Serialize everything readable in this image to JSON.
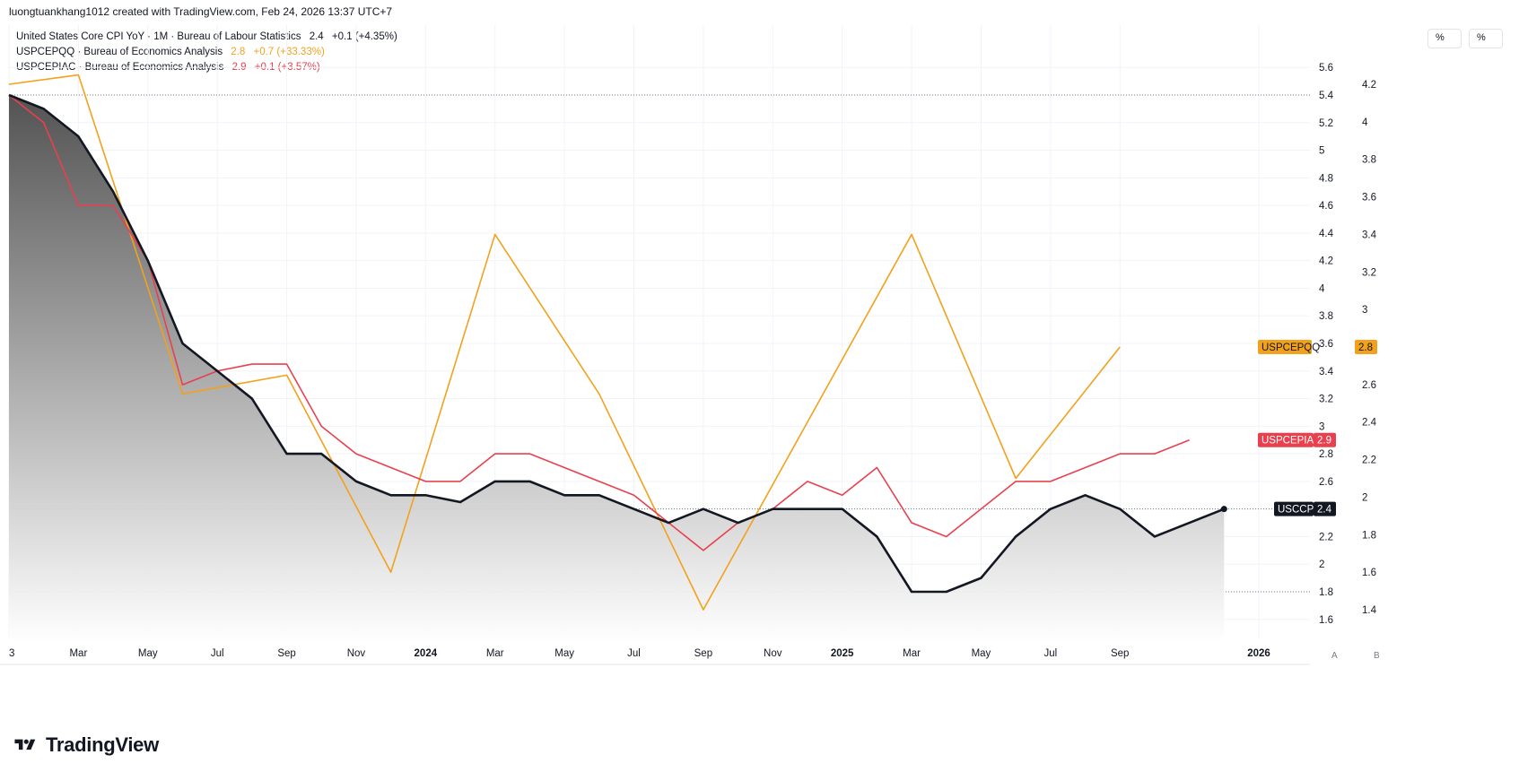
{
  "header": {
    "watermark": "luongtuankhang1012 created with TradingView.com, Feb 24, 2026 13:37 UTC+7"
  },
  "legend": [
    {
      "name": "United States Core CPI YoY · 1M · Bureau of Labour Statistics",
      "value": "2.4",
      "change": "+0.1 (+4.35%)",
      "color": "#131722"
    },
    {
      "name": "USPCEPQQ · Bureau of Economics Analysis",
      "value": "2.8",
      "change": "+0.7 (+33.33%)",
      "color": "#f2a11c"
    },
    {
      "name": "USPCEPIAC · Bureau of Economics Analysis",
      "value": "2.9",
      "change": "+0.1 (+3.57%)",
      "color": "#e8404f"
    }
  ],
  "toolbar": {
    "left_axis_unit": "%",
    "right_axis_unit": "%",
    "btn_a": "A",
    "btn_b": "B"
  },
  "brand": {
    "name": "TradingView"
  },
  "colors": {
    "cpi": "#131722",
    "pceqq": "#f2a11c",
    "pceiac": "#e8404f",
    "grid": "#f0f3fa"
  },
  "chart_data": {
    "type": "line",
    "x": [
      "2023-01",
      "2023-03",
      "2023-05",
      "2023-07",
      "2023-09",
      "2023-11",
      "2024-01",
      "2024-03",
      "2024-05",
      "2024-07",
      "2024-09",
      "2024-11",
      "2025-01",
      "2025-03",
      "2025-05",
      "2025-07",
      "2025-09",
      "2026-01"
    ],
    "x_tick_labels": [
      "3",
      "Mar",
      "May",
      "Jul",
      "Sep",
      "Nov",
      "2024",
      "Mar",
      "May",
      "Jul",
      "Sep",
      "Nov",
      "2025",
      "Mar",
      "May",
      "Jul",
      "Sep",
      "2026"
    ],
    "x_tick_bold": [
      "2024",
      "2025",
      "2026"
    ],
    "axis_left": {
      "ticks": [
        "5.6",
        "5.4",
        "5.2",
        "5",
        "4.8",
        "4.6",
        "4.4",
        "4.2",
        "4",
        "3.8",
        "3.6",
        "3.4",
        "3.2",
        "3",
        "2.8",
        "2.6",
        "2.4",
        "2.2",
        "2",
        "1.8",
        "1.6"
      ],
      "range": [
        1.6,
        5.6
      ]
    },
    "axis_right": {
      "ticks": [
        "4.2",
        "4",
        "3.8",
        "3.6",
        "3.4",
        "3.2",
        "3",
        "2.8",
        "2.6",
        "2.4",
        "2.2",
        "2",
        "1.8",
        "1.6",
        "1.4"
      ],
      "range": [
        1.4,
        4.2
      ]
    },
    "grid": true,
    "series": [
      {
        "name": "USCCPI",
        "axis": "left",
        "fill": true,
        "last_value": "2.4",
        "points": [
          [
            "2023-01",
            5.4
          ],
          [
            "2023-02",
            5.3
          ],
          [
            "2023-03",
            5.1
          ],
          [
            "2023-04",
            4.7
          ],
          [
            "2023-05",
            4.2
          ],
          [
            "2023-06",
            3.6
          ],
          [
            "2023-07",
            3.4
          ],
          [
            "2023-08",
            3.2
          ],
          [
            "2023-09",
            2.8
          ],
          [
            "2023-10",
            2.8
          ],
          [
            "2023-11",
            2.6
          ],
          [
            "2023-12",
            2.5
          ],
          [
            "2024-01",
            2.5
          ],
          [
            "2024-02",
            2.45
          ],
          [
            "2024-03",
            2.6
          ],
          [
            "2024-04",
            2.6
          ],
          [
            "2024-05",
            2.5
          ],
          [
            "2024-06",
            2.5
          ],
          [
            "2024-07",
            2.4
          ],
          [
            "2024-08",
            2.3
          ],
          [
            "2024-09",
            2.4
          ],
          [
            "2024-10",
            2.3
          ],
          [
            "2024-11",
            2.4
          ],
          [
            "2024-12",
            2.4
          ],
          [
            "2025-01",
            2.4
          ],
          [
            "2025-02",
            2.2
          ],
          [
            "2025-03",
            1.8
          ],
          [
            "2025-04",
            1.8
          ],
          [
            "2025-05",
            1.9
          ],
          [
            "2025-06",
            2.2
          ],
          [
            "2025-07",
            2.4
          ],
          [
            "2025-08",
            2.5
          ],
          [
            "2025-09",
            2.4
          ],
          [
            "2025-10",
            2.2
          ],
          [
            "2025-11",
            2.3
          ],
          [
            "2025-12",
            2.4
          ]
        ]
      },
      {
        "name": "USPCEPQQ",
        "axis": "right",
        "fill": false,
        "last_value": "2.8",
        "points": [
          [
            "2023-01",
            4.2
          ],
          [
            "2023-03",
            4.25
          ],
          [
            "2023-06",
            2.55
          ],
          [
            "2023-09",
            2.65
          ],
          [
            "2023-12",
            1.6
          ],
          [
            "2024-03",
            3.4
          ],
          [
            "2024-06",
            2.55
          ],
          [
            "2024-09",
            1.4
          ],
          [
            "2024-12",
            2.4
          ],
          [
            "2025-03",
            3.4
          ],
          [
            "2025-06",
            2.1
          ],
          [
            "2025-09",
            2.8
          ]
        ]
      },
      {
        "name": "USPCEPIAC",
        "axis": "left",
        "fill": false,
        "last_value": "2.9",
        "points": [
          [
            "2023-01",
            5.4
          ],
          [
            "2023-02",
            5.2
          ],
          [
            "2023-03",
            4.6
          ],
          [
            "2023-04",
            4.6
          ],
          [
            "2023-05",
            4.2
          ],
          [
            "2023-06",
            3.3
          ],
          [
            "2023-07",
            3.4
          ],
          [
            "2023-08",
            3.45
          ],
          [
            "2023-09",
            3.45
          ],
          [
            "2023-10",
            3.0
          ],
          [
            "2023-11",
            2.8
          ],
          [
            "2023-12",
            2.7
          ],
          [
            "2024-01",
            2.6
          ],
          [
            "2024-02",
            2.6
          ],
          [
            "2024-03",
            2.8
          ],
          [
            "2024-04",
            2.8
          ],
          [
            "2024-05",
            2.7
          ],
          [
            "2024-06",
            2.6
          ],
          [
            "2024-07",
            2.5
          ],
          [
            "2024-08",
            2.3
          ],
          [
            "2024-09",
            2.1
          ],
          [
            "2024-10",
            2.3
          ],
          [
            "2024-11",
            2.4
          ],
          [
            "2024-12",
            2.6
          ],
          [
            "2025-01",
            2.5
          ],
          [
            "2025-02",
            2.7
          ],
          [
            "2025-03",
            2.3
          ],
          [
            "2025-04",
            2.2
          ],
          [
            "2025-05",
            2.4
          ],
          [
            "2025-06",
            2.6
          ],
          [
            "2025-07",
            2.6
          ],
          [
            "2025-08",
            2.7
          ],
          [
            "2025-09",
            2.8
          ],
          [
            "2025-10",
            2.8
          ],
          [
            "2025-11",
            2.9
          ]
        ]
      }
    ],
    "reference_lines": [
      {
        "axis": "left",
        "value": 5.4
      },
      {
        "axis": "left",
        "value": 2.4
      },
      {
        "axis": "left",
        "value": 1.8
      }
    ]
  }
}
